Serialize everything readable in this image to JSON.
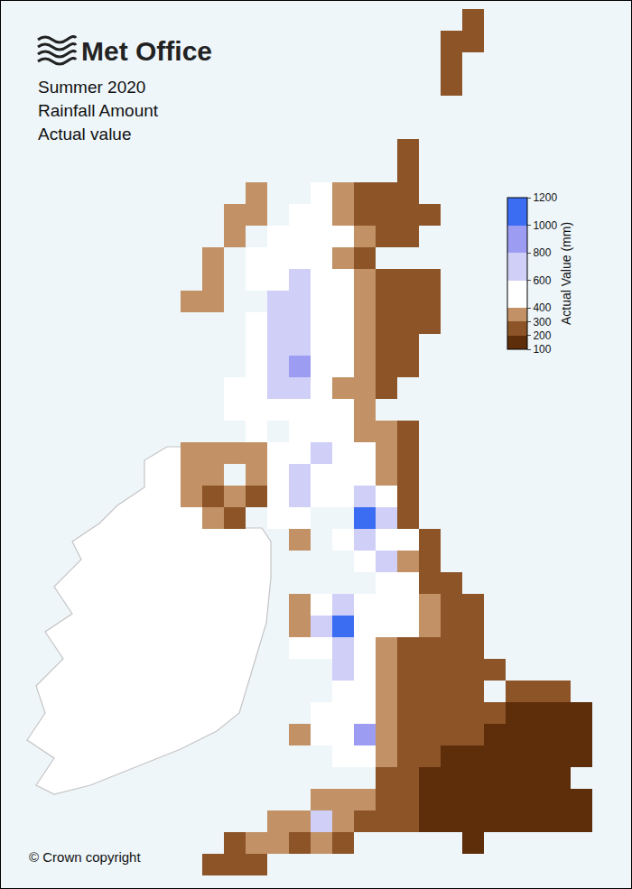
{
  "chart_data": {
    "type": "heatmap",
    "brand": "Met Office",
    "title": [
      "Summer 2020",
      "Rainfall Amount",
      "Actual value"
    ],
    "credit": "© Crown copyright",
    "tick_labels": false,
    "colorbar": {
      "title": "Actual Value (mm)",
      "range": [
        100,
        1200
      ],
      "ticks": [
        100,
        200,
        300,
        400,
        600,
        800,
        1000,
        1200
      ],
      "colors": [
        "#5e2d0a",
        "#8c5427",
        "#c29266",
        "#ffffff",
        "#cfcff7",
        "#9c9cf2",
        "#3b6df2"
      ]
    },
    "cells": [
      [
        null,
        null,
        null,
        null,
        null,
        null,
        null,
        null,
        null,
        null,
        null,
        null,
        null,
        250,
        null,
        null,
        null,
        null,
        null,
        null
      ],
      [
        null,
        null,
        null,
        null,
        null,
        null,
        null,
        null,
        null,
        null,
        null,
        null,
        260,
        250,
        null,
        null,
        null,
        null,
        null,
        null
      ],
      [
        null,
        null,
        null,
        null,
        null,
        null,
        null,
        null,
        null,
        null,
        null,
        null,
        250,
        null,
        null,
        null,
        null,
        null,
        null,
        null
      ],
      [
        null,
        null,
        null,
        null,
        null,
        null,
        null,
        null,
        null,
        null,
        null,
        null,
        260,
        null,
        null,
        null,
        null,
        null,
        null,
        null
      ],
      [
        null,
        null,
        null,
        null,
        null,
        null,
        null,
        null,
        null,
        null,
        null,
        null,
        null,
        null,
        null,
        null,
        null,
        null,
        null,
        null
      ],
      [
        null,
        null,
        null,
        null,
        null,
        null,
        null,
        null,
        null,
        null,
        null,
        null,
        null,
        null,
        null,
        null,
        null,
        null,
        null,
        null
      ],
      [
        null,
        null,
        null,
        null,
        null,
        null,
        null,
        null,
        null,
        null,
        250,
        null,
        null,
        null,
        null,
        null,
        null,
        null,
        null,
        null
      ],
      [
        null,
        null,
        null,
        null,
        null,
        null,
        null,
        null,
        null,
        null,
        260,
        null,
        null,
        null,
        null,
        null,
        null,
        null,
        null,
        null
      ],
      [
        null,
        null,
        null,
        320,
        null,
        null,
        450,
        320,
        260,
        250,
        240,
        null,
        null,
        null,
        null,
        null,
        null,
        null,
        null,
        null
      ],
      [
        null,
        null,
        320,
        330,
        null,
        420,
        450,
        350,
        280,
        250,
        230,
        220,
        null,
        null,
        null,
        null,
        null,
        null,
        null,
        null
      ],
      [
        null,
        null,
        300,
        null,
        450,
        480,
        500,
        400,
        300,
        250,
        220,
        null,
        null,
        null,
        null,
        null,
        null,
        null,
        null,
        null
      ],
      [
        null,
        300,
        null,
        500,
        550,
        500,
        450,
        350,
        280,
        null,
        null,
        null,
        null,
        null,
        null,
        null,
        null,
        null,
        null,
        null
      ],
      [
        null,
        320,
        null,
        520,
        550,
        620,
        550,
        400,
        300,
        250,
        250,
        230,
        null,
        null,
        null,
        null,
        null,
        null,
        null,
        null
      ],
      [
        300,
        300,
        null,
        null,
        600,
        650,
        500,
        450,
        350,
        280,
        250,
        230,
        null,
        null,
        null,
        null,
        null,
        null,
        null,
        null
      ],
      [
        null,
        null,
        null,
        400,
        700,
        600,
        450,
        400,
        300,
        250,
        230,
        220,
        null,
        null,
        null,
        null,
        null,
        null,
        null,
        null
      ],
      [
        null,
        null,
        null,
        500,
        650,
        700,
        550,
        400,
        320,
        260,
        230,
        null,
        null,
        null,
        null,
        null,
        null,
        null,
        null,
        null
      ],
      [
        null,
        null,
        null,
        450,
        600,
        850,
        550,
        400,
        300,
        250,
        230,
        null,
        null,
        null,
        null,
        null,
        null,
        null,
        null,
        null
      ],
      [
        null,
        null,
        400,
        450,
        620,
        700,
        450,
        350,
        300,
        280,
        null,
        null,
        null,
        null,
        null,
        null,
        null,
        null,
        null,
        null
      ],
      [
        null,
        null,
        400,
        450,
        500,
        550,
        450,
        400,
        350,
        null,
        null,
        null,
        null,
        null,
        null,
        null,
        null,
        null,
        null,
        null
      ],
      [
        null,
        null,
        null,
        450,
        null,
        500,
        450,
        400,
        350,
        300,
        250,
        null,
        null,
        null,
        null,
        null,
        null,
        null,
        null,
        null
      ],
      [
        320,
        300,
        350,
        300,
        450,
        550,
        650,
        500,
        450,
        350,
        280,
        null,
        null,
        null,
        null,
        null,
        null,
        null,
        null,
        null
      ],
      [
        300,
        300,
        null,
        300,
        500,
        600,
        550,
        500,
        420,
        350,
        280,
        null,
        null,
        null,
        null,
        null,
        null,
        null,
        null,
        null
      ],
      [
        300,
        280,
        300,
        280,
        500,
        600,
        550,
        400,
        600,
        450,
        280,
        null,
        null,
        null,
        null,
        null,
        null,
        null,
        null,
        null
      ],
      [
        null,
        300,
        280,
        null,
        450,
        500,
        null,
        null,
        1100,
        650,
        250,
        null,
        null,
        null,
        null,
        null,
        null,
        null,
        null,
        null
      ],
      [
        null,
        null,
        null,
        null,
        null,
        300,
        null,
        450,
        650,
        500,
        450,
        250,
        null,
        null,
        null,
        null,
        null,
        null,
        null,
        null
      ],
      [
        null,
        null,
        null,
        null,
        null,
        null,
        null,
        null,
        500,
        650,
        350,
        250,
        null,
        null,
        null,
        null,
        null,
        null,
        null,
        null
      ],
      [
        null,
        null,
        null,
        null,
        null,
        null,
        null,
        null,
        null,
        550,
        400,
        250,
        230,
        null,
        null,
        null,
        null,
        null,
        null,
        null
      ],
      [
        null,
        null,
        null,
        null,
        null,
        350,
        450,
        600,
        400,
        450,
        450,
        300,
        250,
        230,
        null,
        null,
        null,
        null,
        null,
        null
      ],
      [
        null,
        null,
        null,
        null,
        null,
        350,
        700,
        1000,
        500,
        500,
        450,
        300,
        250,
        230,
        null,
        null,
        null,
        null,
        null,
        null
      ],
      [
        null,
        null,
        null,
        null,
        null,
        400,
        500,
        700,
        450,
        350,
        280,
        250,
        230,
        220,
        null,
        null,
        null,
        null,
        null,
        null
      ],
      [
        null,
        null,
        null,
        null,
        null,
        null,
        null,
        600,
        550,
        300,
        250,
        230,
        220,
        220,
        200,
        null,
        null,
        null,
        null,
        null
      ],
      [
        null,
        null,
        null,
        null,
        null,
        null,
        null,
        500,
        450,
        300,
        230,
        220,
        220,
        220,
        null,
        200,
        200,
        200,
        null,
        null
      ],
      [
        null,
        null,
        null,
        null,
        null,
        null,
        400,
        500,
        500,
        300,
        220,
        200,
        200,
        200,
        200,
        180,
        180,
        180,
        170,
        null
      ],
      [
        null,
        null,
        null,
        null,
        null,
        350,
        450,
        550,
        800,
        350,
        220,
        200,
        200,
        200,
        190,
        180,
        180,
        170,
        170,
        null
      ],
      [
        null,
        null,
        null,
        null,
        null,
        null,
        null,
        500,
        450,
        300,
        220,
        200,
        190,
        180,
        170,
        170,
        170,
        160,
        160,
        null
      ],
      [
        null,
        null,
        null,
        null,
        null,
        null,
        null,
        null,
        null,
        250,
        200,
        180,
        170,
        170,
        160,
        150,
        150,
        150,
        null,
        null
      ],
      [
        null,
        null,
        null,
        null,
        null,
        null,
        350,
        350,
        350,
        250,
        200,
        170,
        160,
        150,
        150,
        140,
        140,
        130,
        120,
        null
      ],
      [
        null,
        null,
        null,
        null,
        300,
        300,
        600,
        350,
        250,
        220,
        200,
        180,
        160,
        150,
        140,
        140,
        130,
        110,
        110,
        null
      ],
      [
        null,
        null,
        280,
        300,
        300,
        280,
        300,
        250,
        null,
        null,
        null,
        null,
        null,
        170,
        null,
        null,
        null,
        null,
        null,
        null
      ],
      [
        null,
        250,
        250,
        250,
        null,
        null,
        null,
        null,
        null,
        null,
        null,
        null,
        null,
        null,
        null,
        null,
        null,
        null,
        null,
        null
      ]
    ]
  }
}
